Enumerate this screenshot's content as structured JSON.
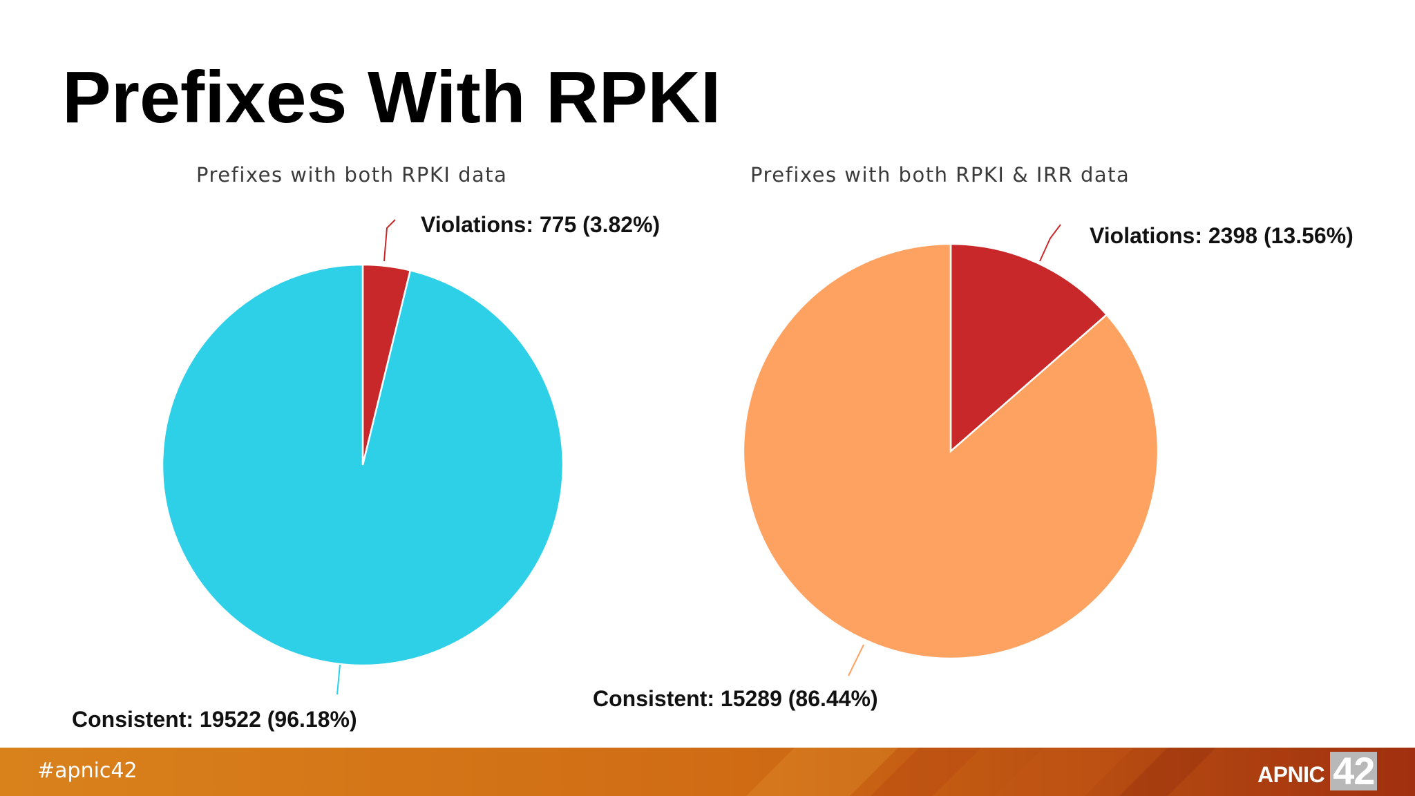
{
  "slide": {
    "title": "Prefixes With RPKI",
    "hashtag": "#apnic42",
    "logo_text": "APNIC",
    "logo_number": "42"
  },
  "colors": {
    "violations": "#c9282a",
    "consistent_chart1": "#2ed0e8",
    "consistent_chart2": "#fea262",
    "footer_left": "#d6801a",
    "footer_right": "#a33a12"
  },
  "chart_data": [
    {
      "type": "pie",
      "title": "Prefixes with both RPKI data",
      "slices": [
        {
          "name": "Violations",
          "value": 775,
          "percent": 3.82,
          "label": "Violations: 775 (3.82%)",
          "color": "#c9282a"
        },
        {
          "name": "Consistent",
          "value": 19522,
          "percent": 96.18,
          "label": "Consistent: 19522 (96.18%)",
          "color": "#2ed0e8"
        }
      ]
    },
    {
      "type": "pie",
      "title": "Prefixes with both RPKI & IRR data",
      "slices": [
        {
          "name": "Violations",
          "value": 2398,
          "percent": 13.56,
          "label": "Violations: 2398 (13.56%)",
          "color": "#c9282a"
        },
        {
          "name": "Consistent",
          "value": 15289,
          "percent": 86.44,
          "label": "Consistent: 15289 (86.44%)",
          "color": "#fea262"
        }
      ]
    }
  ]
}
